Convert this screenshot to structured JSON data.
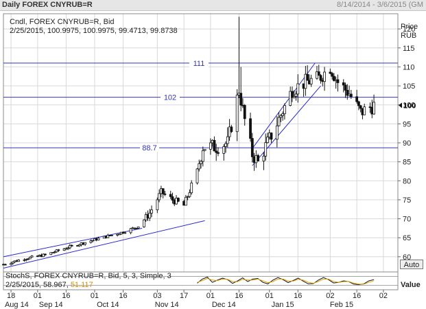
{
  "header": {
    "title": "Daily FOREX CNYRUB=R",
    "date_range": "8/14/2014 - 3/6/2015 (GM"
  },
  "main_panel": {
    "legend_line1": "Cndl, FOREX CNYRUB=R, Bid",
    "legend_line2": "2/25/2015, 100.9975, 100.9975, 99.4713, 99.8738",
    "axis_title_1": "Price",
    "axis_title_2": "RUB",
    "price_ticks": [
      "120",
      "115",
      "110",
      "105",
      "100",
      "95",
      "90",
      "85",
      "80",
      "75",
      "70",
      "65",
      "60"
    ],
    "last_price_label": "100"
  },
  "stoch_panel": {
    "legend_line1": "StochS, FOREX CNYRUB=R, Bid,  5, 3, Simple, 3",
    "legend_date": "2/25/2015, 58.967, ",
    "legend_value2": "51.117",
    "axis_title": "Value"
  },
  "auto_button": "Auto",
  "x_axis": {
    "day_labels": [
      "18",
      "01",
      "16",
      "01",
      "16",
      "03",
      "17",
      "01",
      "16",
      "01",
      "16",
      "02",
      "16",
      "02"
    ],
    "month_labels": [
      "Aug 14",
      "Sep 14",
      "Oct 14",
      "Nov 14",
      "Dec 14",
      "Jan 15",
      "Feb 15"
    ]
  },
  "colors": {
    "levels": "#3535b3",
    "channel": "#2a2ad0",
    "candle": "#111111",
    "stoch_k": "#111111",
    "stoch_d": "#e0a000",
    "grid": "#d8d8d8"
  },
  "chart_data": [
    {
      "type": "candlestick",
      "series": [
        {
          "name": "Cndl, FOREX CNYRUB=R, Bid"
        }
      ],
      "ylim": [
        56,
        124
      ],
      "yticks": [
        60,
        65,
        70,
        75,
        80,
        85,
        90,
        95,
        100,
        105,
        110,
        115,
        120
      ],
      "last_ohlc": {
        "date": "2/25/2015",
        "open": 100.9975,
        "high": 100.9975,
        "low": 99.4713,
        "close": 99.8738
      },
      "close_points": [
        {
          "x": "2014-08-14",
          "y": 58
        },
        {
          "x": "2014-08-25",
          "y": 59.5
        },
        {
          "x": "2014-09-05",
          "y": 60.5
        },
        {
          "x": "2014-09-17",
          "y": 62.5
        },
        {
          "x": "2014-10-01",
          "y": 64.5
        },
        {
          "x": "2014-10-16",
          "y": 66.5
        },
        {
          "x": "2014-10-24",
          "y": 68
        },
        {
          "x": "2014-10-30",
          "y": 71.5
        },
        {
          "x": "2014-11-05",
          "y": 77
        },
        {
          "x": "2014-11-11",
          "y": 75
        },
        {
          "x": "2014-11-17",
          "y": 73.5
        },
        {
          "x": "2014-11-24",
          "y": 82.5
        },
        {
          "x": "2014-11-27",
          "y": 89
        },
        {
          "x": "2014-12-04",
          "y": 89
        },
        {
          "x": "2014-12-10",
          "y": 90
        },
        {
          "x": "2014-12-16",
          "y": 104
        },
        {
          "x": "2014-12-19",
          "y": 96
        },
        {
          "x": "2014-12-23",
          "y": 87
        },
        {
          "x": "2014-12-26",
          "y": 85
        },
        {
          "x": "2015-01-04",
          "y": 94
        },
        {
          "x": "2015-01-13",
          "y": 104
        },
        {
          "x": "2015-01-20",
          "y": 106
        },
        {
          "x": "2015-01-27",
          "y": 107
        },
        {
          "x": "2015-02-02",
          "y": 110
        },
        {
          "x": "2015-02-06",
          "y": 106
        },
        {
          "x": "2015-02-12",
          "y": 103
        },
        {
          "x": "2015-02-18",
          "y": 98
        },
        {
          "x": "2015-02-25",
          "y": 99.87
        }
      ],
      "spikes": [
        {
          "x": "2014-12-16",
          "high": 123.2
        },
        {
          "x": "2014-12-17",
          "high": 110
        }
      ],
      "horizontal_levels": [
        {
          "label": "111",
          "value": 111
        },
        {
          "label": "102",
          "value": 102
        },
        {
          "label": "88.7",
          "value": 88.7
        }
      ],
      "trend_channels": [
        {
          "lines": [
            {
              "x1": "2014-08-14",
              "y1": 60,
              "x2": "2014-10-26",
              "y2": 67.5
            },
            {
              "x1": "2014-08-14",
              "y1": 57,
              "x2": "2014-11-28",
              "y2": 69.5
            }
          ]
        },
        {
          "lines": [
            {
              "x1": "2014-12-23",
              "y1": 88.5,
              "x2": "2015-01-25",
              "y2": 111
            },
            {
              "x1": "2014-12-23",
              "y1": 84,
              "x2": "2015-01-28",
              "y2": 105
            }
          ]
        }
      ]
    },
    {
      "type": "line",
      "series": [
        {
          "name": "StochS %K",
          "color": "#111111",
          "values": [
            35,
            62,
            75,
            40,
            55,
            68,
            58,
            33,
            50,
            70,
            45,
            62,
            66,
            40,
            30,
            55,
            72,
            58,
            38,
            52,
            68,
            48,
            30,
            32,
            55,
            72,
            58,
            36,
            40,
            50,
            45,
            28,
            25,
            30,
            50,
            58
          ]
        },
        {
          "name": "StochS %D",
          "color": "#e0a000",
          "values": [
            40,
            52,
            66,
            55,
            52,
            62,
            60,
            45,
            45,
            60,
            55,
            55,
            62,
            50,
            38,
            45,
            62,
            62,
            48,
            48,
            60,
            55,
            40,
            34,
            46,
            62,
            62,
            46,
            40,
            45,
            46,
            35,
            28,
            28,
            40,
            51
          ]
        }
      ],
      "ylim": [
        0,
        100
      ]
    }
  ]
}
